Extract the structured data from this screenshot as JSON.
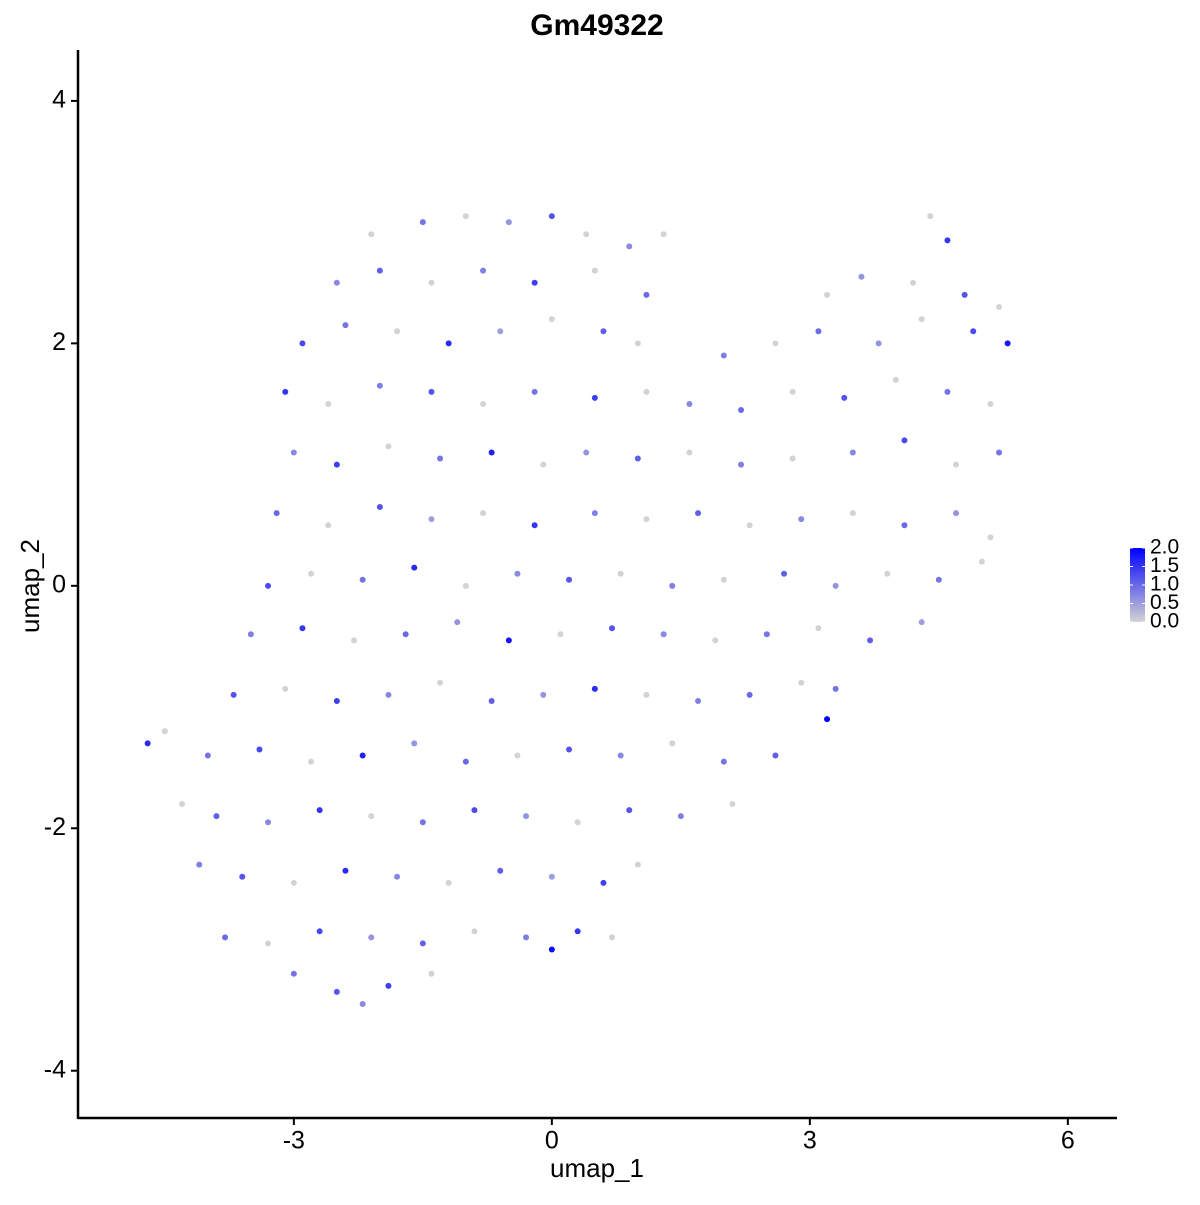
{
  "chart_data": {
    "type": "scatter",
    "title": "Gm49322",
    "x_label": "umap_1",
    "y_label": "umap_2",
    "xlim": [
      -5.51,
      6.56
    ],
    "ylim": [
      -4.39,
      4.42
    ],
    "xticks": [
      -3,
      0,
      3,
      6
    ],
    "yticks": [
      -4,
      -2,
      0,
      2,
      4
    ],
    "color_low": "#d3d3d3",
    "color_high": "#0000ff",
    "colorlim": [
      0,
      2
    ],
    "colorticks": [
      {
        "value": 0,
        "label": "0.0"
      },
      {
        "value": 0.5,
        "label": "0.5"
      },
      {
        "value": 1,
        "label": "1.0"
      },
      {
        "value": 1.5,
        "label": "1.5"
      },
      {
        "value": 2,
        "label": "2.0"
      }
    ],
    "x": [
      -2.1,
      -1.5,
      -1.0,
      -0.5,
      0.0,
      0.4,
      0.9,
      1.3,
      4.4,
      4.6,
      -2.5,
      -2.0,
      -1.4,
      -0.8,
      -0.2,
      0.5,
      1.1,
      3.2,
      3.6,
      4.2,
      4.8,
      5.2,
      -2.9,
      -2.4,
      -1.8,
      -1.2,
      -0.6,
      0.0,
      0.6,
      1.0,
      2.0,
      2.6,
      3.1,
      3.8,
      4.3,
      4.9,
      5.3,
      -3.1,
      -2.6,
      -2.0,
      -1.4,
      -0.8,
      -0.2,
      0.5,
      1.1,
      1.6,
      2.2,
      2.8,
      3.4,
      4.0,
      4.6,
      5.1,
      -3.0,
      -2.5,
      -1.9,
      -1.3,
      -0.7,
      -0.1,
      0.4,
      1.0,
      1.6,
      2.2,
      2.8,
      3.5,
      4.1,
      4.7,
      5.2,
      -3.2,
      -2.6,
      -2.0,
      -1.4,
      -0.8,
      -0.2,
      0.5,
      1.1,
      1.7,
      2.3,
      2.9,
      3.5,
      4.1,
      4.7,
      5.1,
      -3.3,
      -2.8,
      -2.2,
      -1.6,
      -1.0,
      -0.4,
      0.2,
      0.8,
      1.4,
      2.0,
      2.7,
      3.3,
      3.9,
      4.5,
      5.0,
      -3.5,
      -2.9,
      -2.3,
      -1.7,
      -1.1,
      -0.5,
      0.1,
      0.7,
      1.3,
      1.9,
      2.5,
      3.1,
      3.7,
      4.3,
      -3.7,
      -3.1,
      -2.5,
      -1.9,
      -1.3,
      -0.7,
      -0.1,
      0.5,
      1.1,
      1.7,
      2.3,
      2.9,
      3.3,
      -4.7,
      -4.5,
      -4.0,
      -3.4,
      -2.8,
      -2.2,
      -1.6,
      -1.0,
      -0.4,
      0.2,
      0.8,
      1.4,
      2.0,
      2.6,
      3.2,
      -4.3,
      -3.9,
      -3.3,
      -2.7,
      -2.1,
      -1.5,
      -0.9,
      -0.3,
      0.3,
      0.9,
      1.5,
      2.1,
      -4.1,
      -3.6,
      -3.0,
      -2.4,
      -1.8,
      -1.2,
      -0.6,
      0.0,
      0.6,
      1.0,
      -3.8,
      -3.3,
      -2.7,
      -2.1,
      -1.5,
      -0.9,
      -0.3,
      0.3,
      0.7,
      -3.0,
      -2.5,
      -2.2,
      -1.4,
      0.0,
      -1.9
    ],
    "y": [
      2.9,
      3.0,
      3.05,
      3.0,
      3.05,
      2.9,
      2.8,
      2.9,
      3.05,
      2.85,
      2.5,
      2.6,
      2.5,
      2.6,
      2.5,
      2.6,
      2.4,
      2.4,
      2.55,
      2.5,
      2.4,
      2.3,
      2.0,
      2.15,
      2.1,
      2.0,
      2.1,
      2.2,
      2.1,
      2.0,
      1.9,
      2.0,
      2.1,
      2.0,
      2.2,
      2.1,
      2.0,
      1.6,
      1.5,
      1.65,
      1.6,
      1.5,
      1.6,
      1.55,
      1.6,
      1.5,
      1.45,
      1.6,
      1.55,
      1.7,
      1.6,
      1.5,
      1.1,
      1.0,
      1.15,
      1.05,
      1.1,
      1.0,
      1.1,
      1.05,
      1.1,
      1.0,
      1.05,
      1.1,
      1.2,
      1.0,
      1.1,
      0.6,
      0.5,
      0.65,
      0.55,
      0.6,
      0.5,
      0.6,
      0.55,
      0.6,
      0.5,
      0.55,
      0.6,
      0.5,
      0.6,
      0.4,
      0.0,
      0.1,
      0.05,
      0.15,
      0.0,
      0.1,
      0.05,
      0.1,
      0.0,
      0.05,
      0.1,
      0.0,
      0.1,
      0.05,
      0.2,
      -0.4,
      -0.35,
      -0.45,
      -0.4,
      -0.3,
      -0.45,
      -0.4,
      -0.35,
      -0.4,
      -0.45,
      -0.4,
      -0.35,
      -0.45,
      -0.3,
      -0.9,
      -0.85,
      -0.95,
      -0.9,
      -0.8,
      -0.95,
      -0.9,
      -0.85,
      -0.9,
      -0.95,
      -0.9,
      -0.8,
      -0.85,
      -1.3,
      -1.2,
      -1.4,
      -1.35,
      -1.45,
      -1.4,
      -1.3,
      -1.45,
      -1.4,
      -1.35,
      -1.4,
      -1.3,
      -1.45,
      -1.4,
      -1.1,
      -1.8,
      -1.9,
      -1.95,
      -1.85,
      -1.9,
      -1.95,
      -1.85,
      -1.9,
      -1.95,
      -1.85,
      -1.9,
      -1.8,
      -2.3,
      -2.4,
      -2.45,
      -2.35,
      -2.4,
      -2.45,
      -2.35,
      -2.4,
      -2.45,
      -2.3,
      -2.9,
      -2.95,
      -2.85,
      -2.9,
      -2.95,
      -2.85,
      -2.9,
      -2.85,
      -2.9,
      -3.2,
      -3.35,
      -3.45,
      -3.2,
      -3.0,
      -3.3
    ],
    "values": [
      0,
      0.9,
      0,
      0.6,
      1.2,
      0,
      0.7,
      0,
      0,
      1.5,
      0.7,
      1.1,
      0,
      0.8,
      1.4,
      0,
      1.0,
      0,
      0.6,
      0,
      1.2,
      0,
      1.3,
      0.9,
      0,
      1.6,
      0.5,
      0,
      1.1,
      0,
      0.8,
      0,
      1.0,
      0.6,
      0,
      1.3,
      1.8,
      1.5,
      0,
      0.8,
      1.2,
      0,
      0.9,
      1.4,
      0,
      0.7,
      1.0,
      0,
      1.2,
      0,
      0.9,
      0,
      0.7,
      1.4,
      0,
      0.9,
      1.7,
      0,
      0.6,
      1.1,
      0,
      0.8,
      0,
      0.7,
      1.3,
      0,
      0.9,
      1.0,
      0,
      1.2,
      0.5,
      0,
      1.5,
      0.8,
      0,
      1.1,
      0,
      0.7,
      0,
      1.0,
      0.6,
      0,
      1.3,
      0,
      0.9,
      1.6,
      0,
      0.7,
      1.2,
      0,
      0.8,
      0,
      1.1,
      0.6,
      0,
      0.9,
      0,
      0.8,
      1.5,
      0,
      1.0,
      0.6,
      1.8,
      0,
      1.2,
      0.7,
      0,
      0.9,
      0,
      1.1,
      0.5,
      1.2,
      0,
      1.4,
      0.7,
      0,
      1.1,
      0.6,
      1.6,
      0,
      0.8,
      1.0,
      0,
      0.9,
      1.6,
      0,
      0.9,
      1.3,
      0,
      1.7,
      0.6,
      1.0,
      0,
      1.2,
      0.7,
      0,
      0.9,
      1.1,
      2.0,
      0,
      1.1,
      0.7,
      1.5,
      0,
      0.9,
      1.3,
      0.6,
      0,
      1.2,
      0.8,
      0,
      0.8,
      1.2,
      0,
      1.6,
      0.7,
      0,
      1.1,
      0.5,
      1.4,
      0,
      1.0,
      0,
      1.3,
      0.6,
      1.1,
      0,
      0.8,
      1.5,
      0,
      0.9,
      1.2,
      0.7,
      0,
      1.9,
      1.4
    ]
  }
}
